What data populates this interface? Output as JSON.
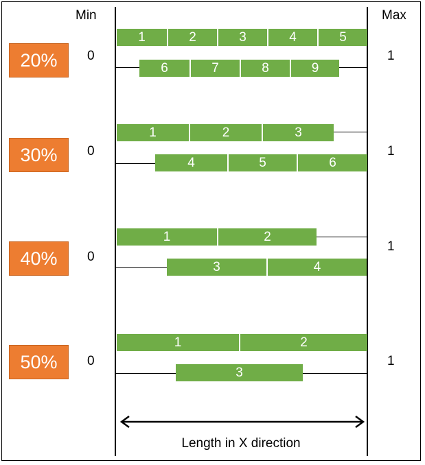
{
  "header": {
    "min_label": "Min",
    "max_label": "Max"
  },
  "axis": {
    "caption": "Length in X direction",
    "min_value": "0",
    "max_value": "1"
  },
  "groups": [
    {
      "percent": "20%",
      "rows": [
        {
          "segments": [
            "1",
            "2",
            "3",
            "4",
            "5"
          ]
        },
        {
          "segments": [
            "6",
            "7",
            "8",
            "9"
          ]
        }
      ]
    },
    {
      "percent": "30%",
      "rows": [
        {
          "segments": [
            "1",
            "2",
            "3"
          ]
        },
        {
          "segments": [
            "4",
            "5",
            "6"
          ]
        }
      ]
    },
    {
      "percent": "40%",
      "rows": [
        {
          "segments": [
            "1",
            "2"
          ]
        },
        {
          "segments": [
            "3",
            "4"
          ]
        }
      ]
    },
    {
      "percent": "50%",
      "rows": [
        {
          "segments": [
            "1",
            "2"
          ]
        },
        {
          "segments": [
            "3"
          ]
        }
      ]
    }
  ],
  "colors": {
    "badge": "#ED7D31",
    "segment": "#70AD47",
    "segment_text": "#FFFFFF"
  }
}
